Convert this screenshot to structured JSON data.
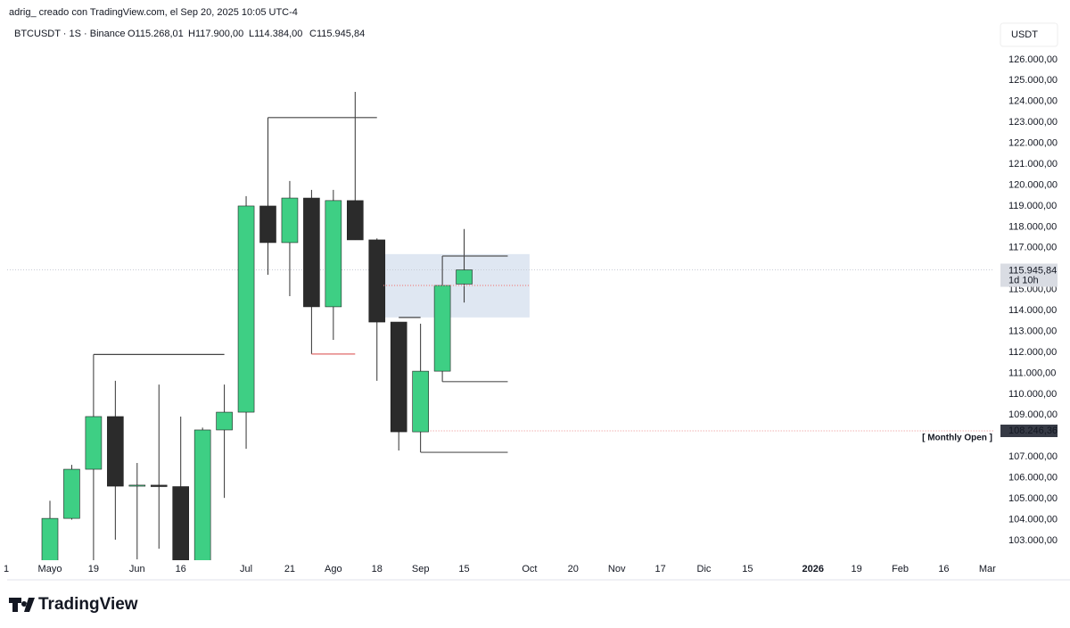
{
  "header": {
    "credit": "adrig_ creado con TradingView.com, el Sep 20, 2025 10:05 UTC-4",
    "symbol": "BTCUSDT · 1S · Binance",
    "ohlc": [
      "O115.268,01",
      "H117.900,00",
      "L114.384,00",
      "C115.945,84"
    ]
  },
  "chart_data": {
    "type": "candlestick",
    "currency": "USDT",
    "categories": [
      "1",
      null,
      "Mayo",
      null,
      "19",
      null,
      "Jun",
      null,
      "16",
      null,
      null,
      "Jul",
      null,
      "21",
      null,
      "Ago",
      null,
      "18",
      null,
      "Sep",
      null,
      "15",
      null,
      null,
      "Oct",
      null,
      "20",
      null,
      "Nov",
      null,
      "17",
      null,
      "Dic",
      null,
      "15",
      null,
      null,
      "2026",
      null,
      "19",
      null,
      "Feb",
      null,
      "16",
      null,
      "Mar"
    ],
    "bold_categories": [
      "2026"
    ],
    "open": [
      null,
      null,
      101800,
      104060,
      106410,
      108930,
      105600,
      105650,
      105580,
      101500,
      108290,
      109140,
      119000,
      117250,
      119380,
      114180,
      119260,
      117380,
      113450,
      108200,
      111100,
      115268.01,
      null,
      null,
      null,
      null,
      null,
      null,
      null,
      null,
      null,
      null,
      null,
      null,
      null,
      null,
      null,
      null,
      null,
      null,
      null,
      null,
      null,
      null,
      null,
      null
    ],
    "high": [
      null,
      null,
      104900,
      106620,
      111900,
      110640,
      106710,
      110460,
      108930,
      108400,
      110460,
      119470,
      123230,
      120200,
      119770,
      119770,
      124460,
      117450,
      113450,
      113370,
      116610,
      117900,
      null,
      null,
      null,
      null,
      null,
      null,
      null,
      null,
      null,
      null,
      null,
      null,
      null,
      null,
      null,
      null,
      null,
      null,
      null,
      null,
      null,
      null,
      null,
      null
    ],
    "low": [
      null,
      null,
      101500,
      104000,
      102000,
      103040,
      102100,
      102610,
      101200,
      101200,
      105040,
      107390,
      115710,
      114690,
      111920,
      112600,
      117380,
      110640,
      107310,
      107220,
      110600,
      114384,
      null,
      null,
      null,
      null,
      null,
      null,
      null,
      null,
      null,
      null,
      null,
      null,
      null,
      null,
      null,
      null,
      null,
      null,
      null,
      null,
      null,
      null,
      null,
      null
    ],
    "close": [
      null,
      null,
      104060,
      106410,
      108930,
      105600,
      105650,
      105580,
      101500,
      108290,
      109140,
      119000,
      117250,
      119380,
      114180,
      119260,
      117380,
      113450,
      108200,
      111100,
      115200,
      115945.84,
      null,
      null,
      null,
      null,
      null,
      null,
      null,
      null,
      null,
      null,
      null,
      null,
      null,
      null,
      null,
      null,
      null,
      null,
      null,
      null,
      null,
      null,
      null,
      null
    ],
    "up_color": "#3ecf84",
    "down_color": "#2b2b2b",
    "ylim": [
      102060,
      126720
    ],
    "yticks": [
      {
        "value": 103000,
        "label": "103.000,00"
      },
      {
        "value": 104000,
        "label": "104.000,00"
      },
      {
        "value": 105000,
        "label": "105.000,00"
      },
      {
        "value": 106000,
        "label": "106.000,00"
      },
      {
        "value": 107000,
        "label": "107.000,00"
      },
      {
        "value": 109000,
        "label": "109.000,00"
      },
      {
        "value": 110000,
        "label": "110.000,00"
      },
      {
        "value": 111000,
        "label": "111.000,00"
      },
      {
        "value": 112000,
        "label": "112.000,00"
      },
      {
        "value": 113000,
        "label": "113.000,00"
      },
      {
        "value": 114000,
        "label": "114.000,00"
      },
      {
        "value": 115000,
        "label": "115.000,00"
      },
      {
        "value": 117000,
        "label": "117.000,00"
      },
      {
        "value": 118000,
        "label": "118.000,00"
      },
      {
        "value": 119000,
        "label": "119.000,00"
      },
      {
        "value": 120000,
        "label": "120.000,00"
      },
      {
        "value": 121000,
        "label": "121.000,00"
      },
      {
        "value": 122000,
        "label": "122.000,00"
      },
      {
        "value": 123000,
        "label": "123.000,00"
      },
      {
        "value": 124000,
        "label": "124.000,00"
      },
      {
        "value": 125000,
        "label": "125.000,00"
      },
      {
        "value": 126000,
        "label": "126.000,00"
      }
    ],
    "zone": {
      "from": 17.3,
      "to": 24,
      "top": 116700,
      "bottom": 113670,
      "color": "#dfe7f2"
    },
    "levels": [
      {
        "value": 111900,
        "from": 4,
        "to": 10,
        "color": "#444444"
      },
      {
        "value": 123230,
        "from": 12,
        "to": 17,
        "color": "#444444"
      },
      {
        "value": 111920,
        "from": 14,
        "to": 16,
        "color": "#e06a6a"
      },
      {
        "value": 113670,
        "from": 18,
        "to": 19,
        "color": "#444444"
      },
      {
        "value": 116610,
        "from": 20,
        "to": 23,
        "color": "#555555"
      },
      {
        "value": 110600,
        "from": 20,
        "to": 23,
        "color": "#555555"
      },
      {
        "value": 107220,
        "from": 19,
        "to": 23,
        "color": "#555555"
      },
      {
        "value": 115200,
        "from": 17.3,
        "to": 24,
        "color": "#f08080",
        "dashed": true
      }
    ],
    "last_price": {
      "value": 115945.84,
      "label": "115.945,84",
      "countdown": "1d 10h"
    },
    "monthly_open": {
      "value": 108246.36,
      "label": "108.246,36",
      "text": "[ Monthly Open ]"
    }
  },
  "footer": {
    "logo": "TradingView"
  }
}
